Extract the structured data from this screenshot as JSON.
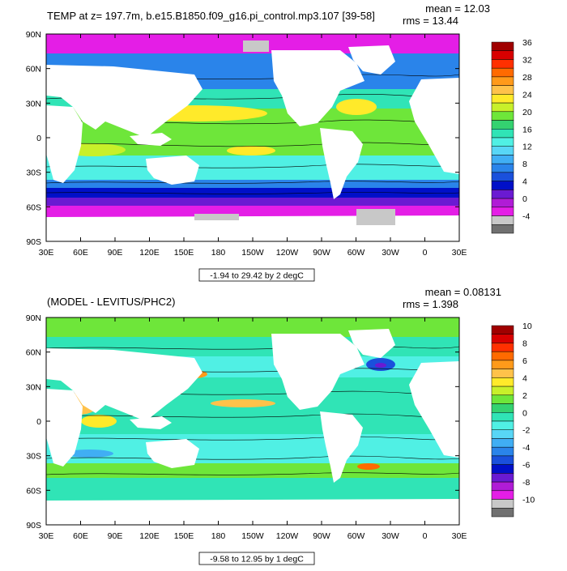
{
  "chart_data": [
    {
      "type": "heatmap",
      "title": "TEMP at z= 197.7m, b.e15.B1850.f09_g16.pi_control.mp3.107 [39-58]",
      "stats": {
        "mean": "mean = 12.03",
        "rms": "rms = 13.44"
      },
      "range_label": "-1.94 to 29.42 by 2 degC",
      "x_ticks": [
        "30E",
        "60E",
        "90E",
        "120E",
        "150E",
        "180",
        "150W",
        "120W",
        "90W",
        "60W",
        "30W",
        "0",
        "30E"
      ],
      "y_ticks": [
        "90N",
        "60N",
        "30N",
        "0",
        "30S",
        "60S",
        "90S"
      ],
      "colorbar": {
        "labels": [
          "36",
          "32",
          "28",
          "24",
          "20",
          "16",
          "12",
          "8",
          "4",
          "0",
          "-4"
        ],
        "colors": [
          "#a00000",
          "#d80000",
          "#ff3000",
          "#ff6a00",
          "#ff9a1a",
          "#ffc24a",
          "#ffea2a",
          "#c8f02a",
          "#6ee63a",
          "#34d270",
          "#30e4b6",
          "#50f0e4",
          "#58d6f6",
          "#40aef4",
          "#2a84ea",
          "#1a50dc",
          "#0010c8",
          "#6a1ad2",
          "#b01cd6",
          "#e41ee6",
          "#c8c8c8",
          "#707070"
        ]
      }
    },
    {
      "type": "heatmap",
      "title": "(MODEL - LEVITUS/PHC2)",
      "stats": {
        "mean": "mean = 0.08131",
        "rms": "rms = 1.398"
      },
      "range_label": "-9.58 to 12.95 by 1 degC",
      "x_ticks": [
        "30E",
        "60E",
        "90E",
        "120E",
        "150E",
        "180",
        "150W",
        "120W",
        "90W",
        "60W",
        "30W",
        "0",
        "30E"
      ],
      "y_ticks": [
        "90N",
        "60N",
        "30N",
        "0",
        "30S",
        "60S",
        "90S"
      ],
      "colorbar": {
        "labels": [
          "10",
          "8",
          "6",
          "4",
          "2",
          "0",
          "-2",
          "-4",
          "-6",
          "-8",
          "-10"
        ],
        "colors": [
          "#a00000",
          "#d80000",
          "#ff3000",
          "#ff6a00",
          "#ff9a1a",
          "#ffc24a",
          "#ffea2a",
          "#c8f02a",
          "#6ee63a",
          "#34d270",
          "#30e4b6",
          "#50f0e4",
          "#58d6f6",
          "#40aef4",
          "#2a84ea",
          "#1a50dc",
          "#0010c8",
          "#6a1ad2",
          "#b01cd6",
          "#e41ee6",
          "#c8c8c8",
          "#707070"
        ]
      }
    }
  ]
}
